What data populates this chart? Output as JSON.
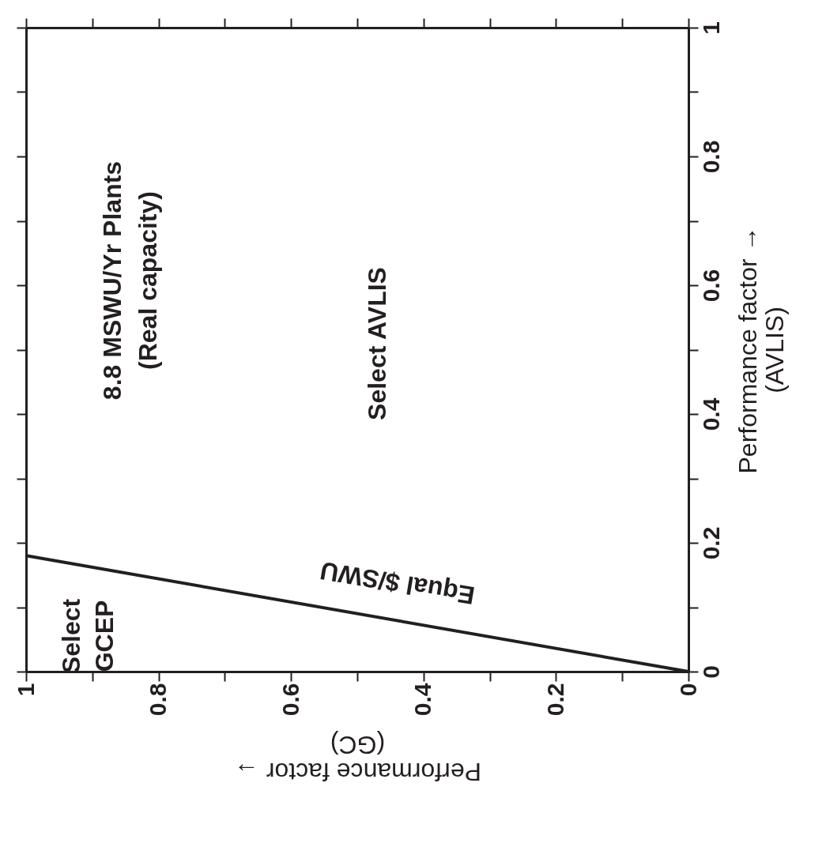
{
  "chart_data": {
    "type": "line",
    "xlabel": "Performance factor → (GC)",
    "ylabel": "Performance factor → (AVLIS)",
    "x": [
      0,
      1
    ],
    "series": [
      {
        "color": "#231f20",
        "values": [
          0,
          0.18
        ]
      }
    ],
    "xlim": [
      1,
      0
    ],
    "ylim": [
      0,
      1
    ],
    "xticks": [
      0,
      {
        "value": 0.1,
        "label": null
      },
      0.2,
      {
        "value": 0.3,
        "label": null
      },
      0.4,
      {
        "value": 0.5,
        "label": null
      },
      0.6,
      {
        "value": 0.7,
        "label": null
      },
      0.8,
      {
        "value": 0.9,
        "label": null
      },
      1
    ],
    "yticks": [
      0,
      {
        "value": 0.1,
        "label": null
      },
      0.2,
      {
        "value": 0.3,
        "label": null
      },
      0.4,
      {
        "value": 0.5,
        "label": null
      },
      0.6,
      {
        "value": 0.7,
        "label": null
      },
      0.8,
      {
        "value": 0.9,
        "label": null
      },
      1
    ],
    "grid": false,
    "marker": "none",
    "line_style": "solid",
    "annotations": [
      "Equal $/SWU",
      "8.8 MSWU/Yr Plants",
      "(Real capacity)",
      "Select AVLIS",
      "Select GCEP"
    ]
  }
}
